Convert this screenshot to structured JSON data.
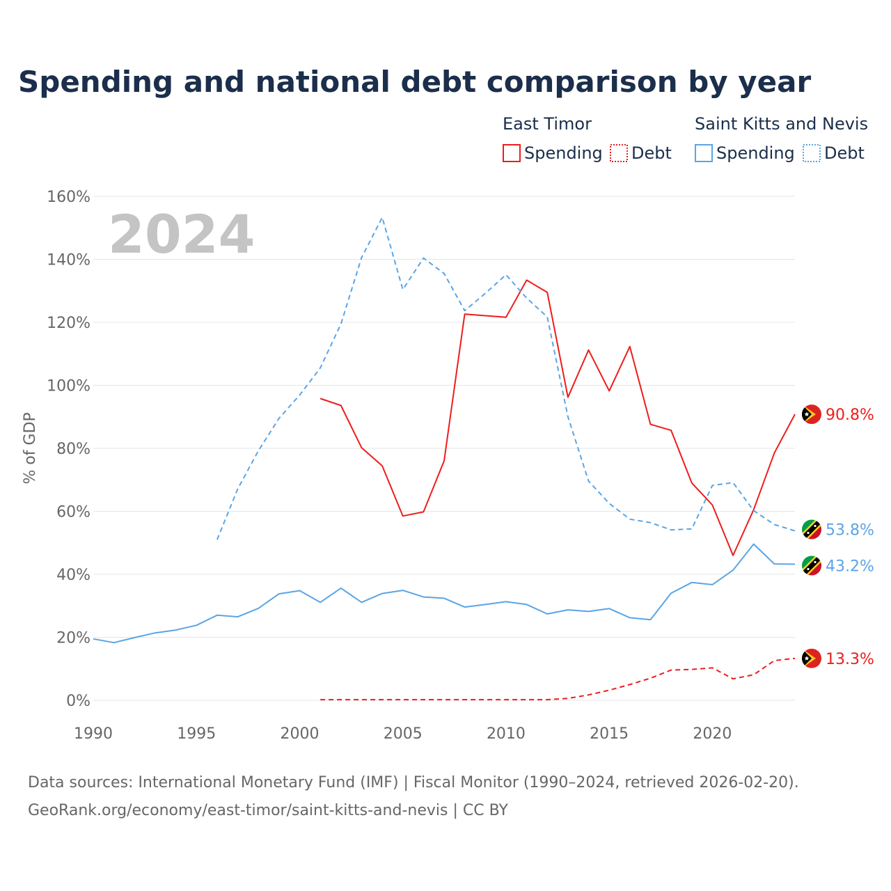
{
  "title": "Spending and national debt comparison by year",
  "year_label": "2024",
  "legend": {
    "groups": [
      {
        "title": "East Timor",
        "items": [
          {
            "label": "Spending",
            "style": "solid"
          },
          {
            "label": "Debt",
            "style": "dotted"
          }
        ],
        "color": "#ee1c1c"
      },
      {
        "title": "Saint Kitts and Nevis",
        "items": [
          {
            "label": "Spending",
            "style": "solid"
          },
          {
            "label": "Debt",
            "style": "dotted"
          }
        ],
        "color": "#5aa4e6"
      }
    ]
  },
  "colors": {
    "east_timor": "#ee1c1c",
    "saint_kitts": "#5aa4e6",
    "title": "#1b2e4b",
    "grid": "#e6e6e6",
    "axis_text": "#666666"
  },
  "icons": {
    "east_timor_flag": "east-timor-flag-icon",
    "saint_kitts_flag": "saint-kitts-flag-icon"
  },
  "source": {
    "line1": "Data sources: International Monetary Fund (IMF) | Fiscal Monitor (1990–2024, retrieved 2026-02-20).",
    "line2": "GeoRank.org/economy/east-timor/saint-kitts-and-nevis | CC BY"
  },
  "chart_data": {
    "type": "line",
    "ylabel": "% of GDP",
    "xlabel": "",
    "xlim": [
      1990,
      2024
    ],
    "ylim": [
      0,
      160
    ],
    "x_ticks": [
      1990,
      1995,
      2000,
      2005,
      2010,
      2015,
      2020
    ],
    "x_tick_labels": [
      "1990",
      "1995",
      "2000",
      "2005",
      "2010",
      "2015",
      "2020"
    ],
    "y_ticks": [
      0,
      20,
      40,
      60,
      80,
      100,
      120,
      140,
      160
    ],
    "y_tick_labels": [
      "0%",
      "20%",
      "40%",
      "60%",
      "80%",
      "100%",
      "120%",
      "140%",
      "160%"
    ],
    "grid": true,
    "legend_position": "top-right",
    "series": [
      {
        "key": "east_timor_spending",
        "name": "East Timor Spending",
        "country": "East Timor",
        "color": "#ee1c1c",
        "dash": "solid",
        "end_label": "90.8%",
        "x": [
          2001,
          2002,
          2003,
          2004,
          2005,
          2006,
          2007,
          2008,
          2009,
          2010,
          2011,
          2012,
          2013,
          2014,
          2015,
          2016,
          2017,
          2018,
          2019,
          2020,
          2021,
          2022,
          2023,
          2024
        ],
        "values": [
          95.8,
          93.6,
          80.2,
          74.4,
          58.5,
          59.8,
          76.0,
          122.6,
          122.1,
          121.6,
          133.4,
          129.5,
          96.2,
          111.2,
          98.2,
          112.3,
          87.6,
          85.7,
          69.0,
          62.0,
          46.0,
          60.5,
          78.5,
          90.8
        ]
      },
      {
        "key": "east_timor_debt",
        "name": "East Timor Debt",
        "country": "East Timor",
        "color": "#ee1c1c",
        "dash": "dashed",
        "end_label": "13.3%",
        "x": [
          2001,
          2002,
          2003,
          2004,
          2005,
          2006,
          2007,
          2008,
          2009,
          2010,
          2011,
          2012,
          2013,
          2014,
          2015,
          2016,
          2017,
          2018,
          2019,
          2020,
          2021,
          2022,
          2023,
          2024
        ],
        "values": [
          0.2,
          0.2,
          0.2,
          0.2,
          0.2,
          0.2,
          0.2,
          0.2,
          0.2,
          0.2,
          0.2,
          0.2,
          0.6,
          1.7,
          3.2,
          5.0,
          7.0,
          9.6,
          9.8,
          10.3,
          6.8,
          8.1,
          12.6,
          13.3
        ]
      },
      {
        "key": "saint_kitts_spending",
        "name": "Saint Kitts and Nevis Spending",
        "country": "Saint Kitts and Nevis",
        "color": "#5aa4e6",
        "dash": "solid",
        "end_label": "43.2%",
        "x": [
          1990,
          1991,
          1992,
          1993,
          1994,
          1995,
          1996,
          1997,
          1998,
          1999,
          2000,
          2001,
          2002,
          2003,
          2004,
          2005,
          2006,
          2007,
          2008,
          2009,
          2010,
          2011,
          2012,
          2013,
          2014,
          2015,
          2016,
          2017,
          2018,
          2019,
          2020,
          2021,
          2022,
          2023,
          2024
        ],
        "values": [
          19.5,
          18.3,
          19.9,
          21.4,
          22.3,
          23.8,
          27.0,
          26.5,
          29.2,
          33.8,
          34.8,
          31.1,
          35.6,
          31.1,
          33.9,
          34.9,
          32.8,
          32.4,
          29.6,
          30.4,
          31.3,
          30.4,
          27.4,
          28.7,
          28.2,
          29.1,
          26.2,
          25.6,
          34.0,
          37.4,
          36.7,
          41.3,
          49.6,
          43.3,
          43.2
        ]
      },
      {
        "key": "saint_kitts_debt",
        "name": "Saint Kitts and Nevis Debt",
        "country": "Saint Kitts and Nevis",
        "color": "#5aa4e6",
        "dash": "dashed",
        "end_label": "53.8%",
        "x": [
          1996,
          1997,
          1998,
          1999,
          2000,
          2001,
          2002,
          2003,
          2004,
          2005,
          2006,
          2007,
          2008,
          2009,
          2010,
          2011,
          2012,
          2013,
          2014,
          2015,
          2016,
          2017,
          2018,
          2019,
          2020,
          2021,
          2022,
          2023,
          2024
        ],
        "values": [
          51.0,
          67.1,
          79.2,
          89.5,
          96.9,
          105.5,
          119.5,
          140.5,
          153.3,
          130.4,
          140.4,
          135.5,
          123.7,
          129.2,
          135.1,
          127.7,
          121.7,
          90.0,
          69.6,
          62.5,
          57.5,
          56.4,
          54.1,
          54.4,
          68.2,
          69.1,
          60.2,
          55.8,
          53.8
        ]
      }
    ]
  }
}
